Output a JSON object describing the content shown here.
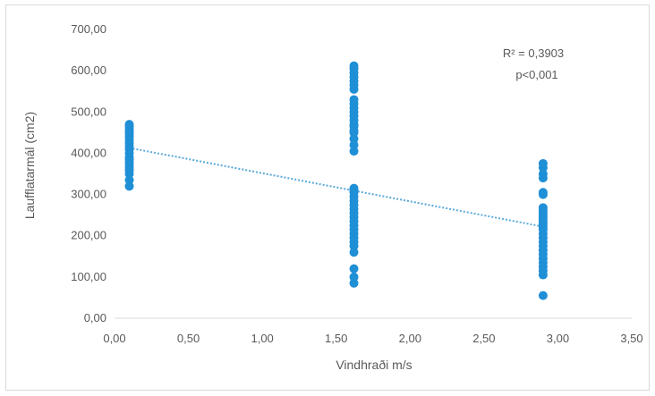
{
  "chart_data": {
    "type": "scatter",
    "xlabel": "Vindhraði  m/s",
    "ylabel": "Laufflatarmál  (cm2)",
    "xlim": [
      0,
      3.5
    ],
    "ylim": [
      0,
      700
    ],
    "x_ticks": [
      "0,00",
      "0,50",
      "1,00",
      "1,50",
      "2,00",
      "2,50",
      "3,00",
      "3,50"
    ],
    "y_ticks": [
      "0,00",
      "100,00",
      "200,00",
      "300,00",
      "400,00",
      "500,00",
      "600,00",
      "700,00"
    ],
    "grid": "none",
    "legend": "none",
    "marker_color": "#1f8fd6",
    "trendline_color": "#5aa9dc",
    "annotations": [
      "R² = 0,3903",
      "p<0,001"
    ],
    "trendline": {
      "x": [
        0.1,
        2.9
      ],
      "y": [
        413,
        222
      ]
    },
    "series": [
      {
        "x": [
          0.1,
          0.1,
          0.1,
          0.1,
          0.1,
          0.1,
          0.1,
          0.1,
          0.1,
          0.1,
          0.1,
          0.1,
          0.1,
          0.1,
          0.1,
          0.1,
          0.1,
          0.1,
          0.1,
          0.1,
          1.62,
          1.62,
          1.62,
          1.62,
          1.62,
          1.62,
          1.62,
          1.62,
          1.62,
          1.62,
          1.62,
          1.62,
          1.62,
          1.62,
          1.62,
          1.62,
          1.62,
          1.62,
          1.62,
          1.62,
          1.62,
          1.62,
          1.62,
          1.62,
          1.62,
          1.62,
          1.62,
          1.62,
          1.62,
          1.62,
          1.62,
          1.62,
          1.62,
          1.62,
          1.62,
          1.62,
          1.62,
          1.62,
          1.62,
          1.62,
          2.9,
          2.9,
          2.9,
          2.9,
          2.9,
          2.9,
          2.9,
          2.9,
          2.9,
          2.9,
          2.9,
          2.9,
          2.9,
          2.9,
          2.9,
          2.9,
          2.9,
          2.9,
          2.9,
          2.9,
          2.9,
          2.9,
          2.9,
          2.9,
          2.9,
          2.9,
          2.9
        ],
        "y": [
          320,
          335,
          350,
          365,
          378,
          390,
          400,
          410,
          418,
          425,
          432,
          440,
          447,
          453,
          459,
          465,
          470,
          385,
          372,
          358,
          85,
          100,
          120,
          160,
          175,
          185,
          195,
          205,
          215,
          225,
          235,
          245,
          255,
          265,
          275,
          285,
          295,
          305,
          310,
          315,
          405,
          420,
          435,
          450,
          465,
          480,
          490,
          500,
          510,
          520,
          530,
          555,
          565,
          575,
          585,
          595,
          605,
          612,
          470,
          455,
          55,
          105,
          115,
          125,
          135,
          145,
          155,
          165,
          175,
          185,
          195,
          205,
          215,
          222,
          228,
          235,
          242,
          248,
          255,
          262,
          268,
          300,
          305,
          340,
          350,
          365,
          375
        ]
      }
    ]
  }
}
